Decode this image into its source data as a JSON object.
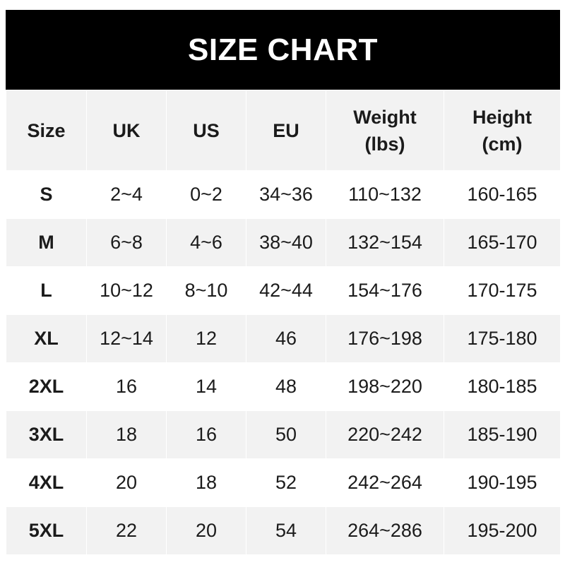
{
  "title": "SIZE CHART",
  "headers": [
    "Size",
    "UK",
    "US",
    "EU",
    "Weight\n(lbs)",
    "Height\n(cm)"
  ],
  "header_lines": [
    [
      "Size"
    ],
    [
      "UK"
    ],
    [
      "US"
    ],
    [
      "EU"
    ],
    [
      "Weight",
      "(lbs)"
    ],
    [
      "Height",
      "(cm)"
    ]
  ],
  "rows": [
    [
      "S",
      "2~4",
      "0~2",
      "34~36",
      "110~132",
      "160-165"
    ],
    [
      "M",
      "6~8",
      "4~6",
      "38~40",
      "132~154",
      "165-170"
    ],
    [
      "L",
      "10~12",
      "8~10",
      "42~44",
      "154~176",
      "170-175"
    ],
    [
      "XL",
      "12~14",
      "12",
      "46",
      "176~198",
      "175-180"
    ],
    [
      "2XL",
      "16",
      "14",
      "48",
      "198~220",
      "180-185"
    ],
    [
      "3XL",
      "18",
      "16",
      "50",
      "220~242",
      "185-190"
    ],
    [
      "4XL",
      "20",
      "18",
      "52",
      "242~264",
      "190-195"
    ],
    [
      "5XL",
      "22",
      "20",
      "54",
      "264~286",
      "195-200"
    ]
  ],
  "colors": {
    "title_bg": "#000000",
    "stripe": "#f2f2f2",
    "text": "#1b1b1b"
  }
}
